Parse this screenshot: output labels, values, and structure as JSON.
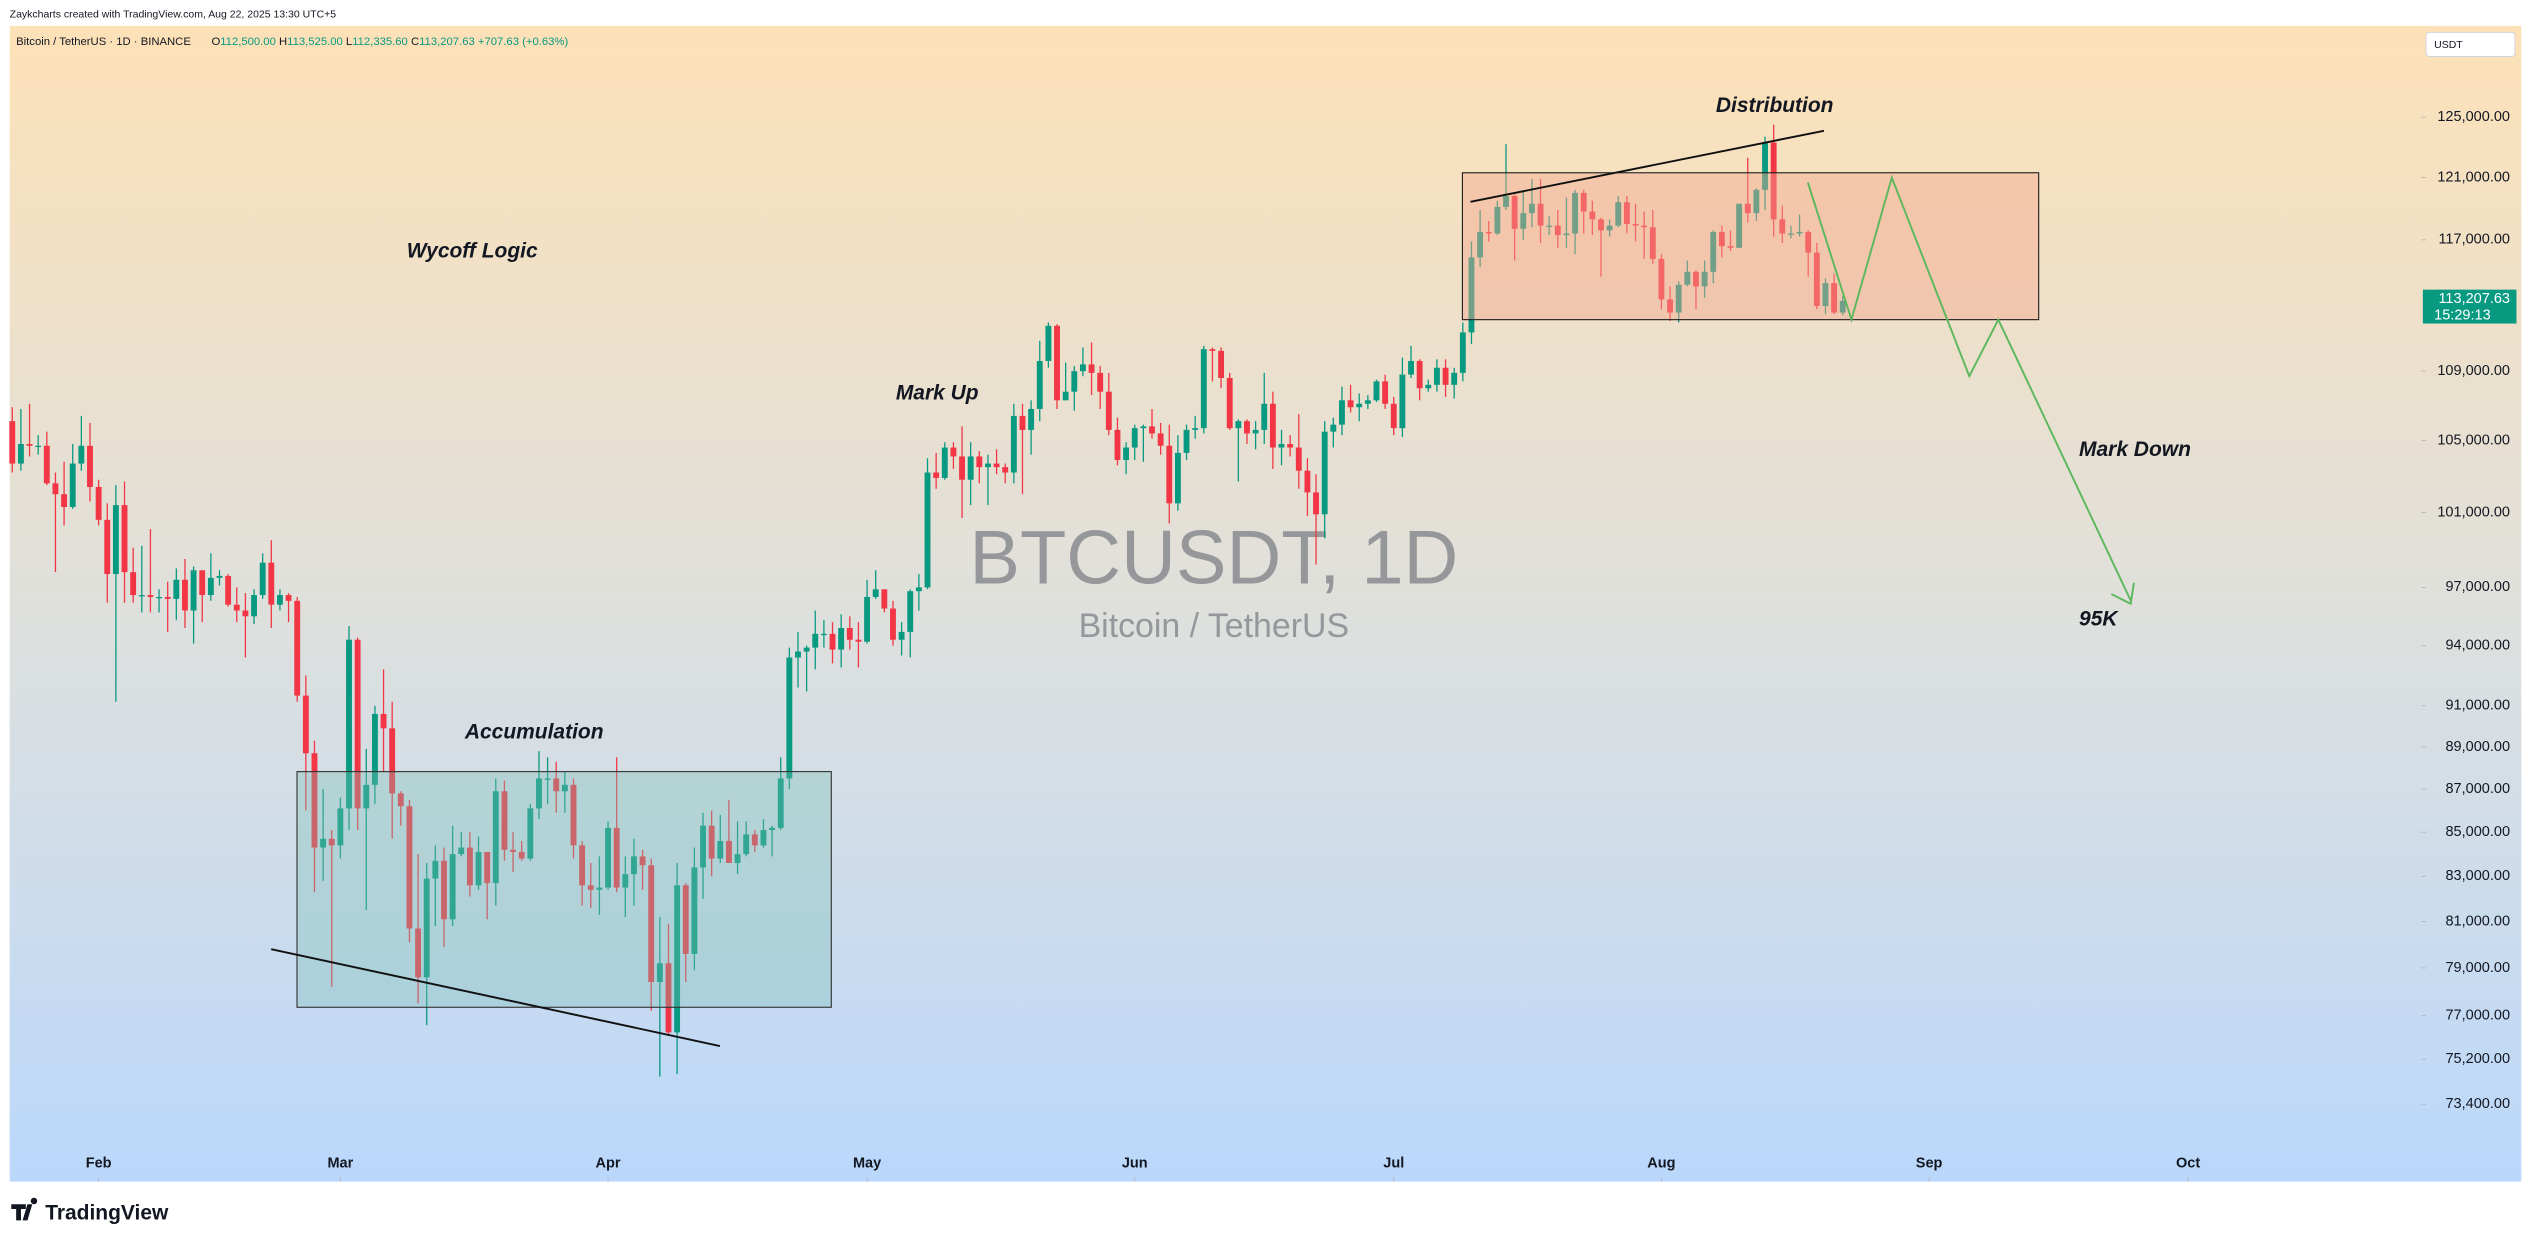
{
  "header": {
    "credit": "Zaykcharts created with TradingView.com, Aug 22, 2025 13:30 UTC+5",
    "currency": "USDT"
  },
  "chart_data": {
    "type": "candlestick",
    "symbol": "Bitcoin / TetherUS · 1D · BINANCE",
    "ohlc_legend": [
      {
        "key": "O",
        "value": "112,500.00"
      },
      {
        "key": "H",
        "value": "113,525.00"
      },
      {
        "key": "L",
        "value": "112,335.60"
      },
      {
        "key": "C",
        "value": "113,207.63"
      }
    ],
    "change": "+707.63 (+0.63%)",
    "watermark": "BTCUSDT, 1D",
    "watermark_subtitle": "Bitcoin / TetherUS",
    "price_tag": {
      "label": "113,207.63",
      "countdown": "15:29:13"
    },
    "up_color": "#089981",
    "down_color": "#f23645",
    "log_scale": true,
    "xlim": [
      -0.3,
      279
    ],
    "ylim": [
      70400,
      131200
    ],
    "xticks": [
      {
        "value": 10,
        "label": "Feb"
      },
      {
        "value": 38,
        "label": "Mar"
      },
      {
        "value": 69,
        "label": "Apr"
      },
      {
        "value": 99,
        "label": "May"
      },
      {
        "value": 130,
        "label": "Jun"
      },
      {
        "value": 160,
        "label": "Jul"
      },
      {
        "value": 191,
        "label": "Aug"
      },
      {
        "value": 222,
        "label": "Sep"
      },
      {
        "value": 252,
        "label": "Oct"
      }
    ],
    "yticks": [
      {
        "value": 125000,
        "label": "125,000.00"
      },
      {
        "value": 121000,
        "label": "121,000.00"
      },
      {
        "value": 117000,
        "label": "117,000.00"
      },
      {
        "value": 109000,
        "label": "109,000.00"
      },
      {
        "value": 105000,
        "label": "105,000.00"
      },
      {
        "value": 101000,
        "label": "101,000.00"
      },
      {
        "value": 97000,
        "label": "97,000.00"
      },
      {
        "value": 94000,
        "label": "94,000.00"
      },
      {
        "value": 91000,
        "label": "91,000.00"
      },
      {
        "value": 89000,
        "label": "89,000.00"
      },
      {
        "value": 87000,
        "label": "87,000.00"
      },
      {
        "value": 85000,
        "label": "85,000.00"
      },
      {
        "value": 83000,
        "label": "83,000.00"
      },
      {
        "value": 81000,
        "label": "81,000.00"
      },
      {
        "value": 79000,
        "label": "79,000.00"
      },
      {
        "value": 77000,
        "label": "77,000.00"
      },
      {
        "value": 75200,
        "label": "75,200.00"
      },
      {
        "value": 73400,
        "label": "73,400.00"
      }
    ],
    "candles": [
      [
        106100,
        106900,
        103200,
        103700
      ],
      [
        103700,
        106800,
        103300,
        104800
      ],
      [
        104800,
        107100,
        104100,
        104700
      ],
      [
        104700,
        105300,
        104200,
        104700
      ],
      [
        104700,
        105500,
        102500,
        102600
      ],
      [
        102600,
        103200,
        97800,
        102000
      ],
      [
        102000,
        103800,
        100300,
        101300
      ],
      [
        101300,
        104800,
        101200,
        103700
      ],
      [
        103700,
        106400,
        103300,
        104700
      ],
      [
        104700,
        106000,
        101600,
        102400
      ],
      [
        102400,
        102800,
        100300,
        100600
      ],
      [
        100600,
        101500,
        96200,
        97700
      ],
      [
        97700,
        102500,
        91200,
        101400
      ],
      [
        101400,
        102700,
        96200,
        97800
      ],
      [
        97800,
        99100,
        96200,
        96600
      ],
      [
        96600,
        99200,
        95700,
        96600
      ],
      [
        96600,
        100100,
        95700,
        96500
      ],
      [
        96500,
        96900,
        95700,
        96500
      ],
      [
        96500,
        97300,
        94700,
        96400
      ],
      [
        96400,
        98000,
        95300,
        97400
      ],
      [
        97400,
        98500,
        94900,
        95800
      ],
      [
        95800,
        98100,
        94100,
        97900
      ],
      [
        97900,
        97900,
        95200,
        96600
      ],
      [
        96600,
        98800,
        96300,
        97500
      ],
      [
        97500,
        97900,
        97100,
        97600
      ],
      [
        97600,
        97700,
        96000,
        96100
      ],
      [
        96100,
        97000,
        95200,
        95800
      ],
      [
        95800,
        96700,
        93400,
        95500
      ],
      [
        95500,
        96900,
        95100,
        96600
      ],
      [
        96600,
        98800,
        96400,
        98300
      ],
      [
        98300,
        99500,
        94900,
        96100
      ],
      [
        96100,
        96900,
        95800,
        96600
      ],
      [
        96600,
        96700,
        95200,
        96300
      ],
      [
        96300,
        96500,
        91200,
        91500
      ],
      [
        91500,
        92500,
        86000,
        88700
      ],
      [
        88700,
        89300,
        82300,
        84300
      ],
      [
        84300,
        87000,
        82800,
        84700
      ],
      [
        84700,
        85100,
        78200,
        84400
      ],
      [
        84400,
        86600,
        83800,
        86100
      ],
      [
        86100,
        95000,
        85100,
        94300
      ],
      [
        94300,
        94400,
        85100,
        86100
      ],
      [
        86100,
        88900,
        81500,
        87200
      ],
      [
        87200,
        91000,
        86300,
        90600
      ],
      [
        90600,
        92800,
        87800,
        89900
      ],
      [
        89900,
        91200,
        84700,
        86800
      ],
      [
        86800,
        86900,
        85300,
        86200
      ],
      [
        86200,
        86500,
        80100,
        80700
      ],
      [
        80700,
        84000,
        77500,
        78600
      ],
      [
        78600,
        83600,
        76600,
        82900
      ],
      [
        82900,
        84400,
        80800,
        83700
      ],
      [
        83700,
        84300,
        79900,
        81100
      ],
      [
        81100,
        85300,
        80800,
        84000
      ],
      [
        84000,
        85000,
        83900,
        84300
      ],
      [
        84300,
        85000,
        82100,
        82600
      ],
      [
        82600,
        84800,
        82400,
        84100
      ],
      [
        84100,
        84100,
        81100,
        82700
      ],
      [
        82700,
        87500,
        81700,
        86900
      ],
      [
        86900,
        87400,
        83700,
        84200
      ],
      [
        84200,
        85000,
        83200,
        84100
      ],
      [
        84100,
        84600,
        83700,
        83800
      ],
      [
        83800,
        86300,
        83700,
        86100
      ],
      [
        86100,
        88800,
        85600,
        87500
      ],
      [
        87500,
        88500,
        86300,
        87500
      ],
      [
        87500,
        88300,
        85900,
        86900
      ],
      [
        86900,
        87800,
        85900,
        87200
      ],
      [
        87200,
        87500,
        83800,
        84400
      ],
      [
        84400,
        84600,
        81700,
        82600
      ],
      [
        82600,
        83600,
        81600,
        82400
      ],
      [
        82400,
        83900,
        81300,
        82500
      ],
      [
        82500,
        85500,
        82400,
        85200
      ],
      [
        85200,
        88500,
        82300,
        82500
      ],
      [
        82500,
        83900,
        81200,
        83100
      ],
      [
        83100,
        84700,
        81700,
        83900
      ],
      [
        83900,
        84200,
        82400,
        83500
      ],
      [
        83500,
        83800,
        77200,
        78400
      ],
      [
        78400,
        81200,
        74500,
        79200
      ],
      [
        79200,
        80900,
        76200,
        76300
      ],
      [
        76300,
        83600,
        74600,
        82600
      ],
      [
        82600,
        82700,
        78400,
        79600
      ],
      [
        79600,
        84300,
        78900,
        83400
      ],
      [
        83400,
        85900,
        82000,
        85300
      ],
      [
        85300,
        86000,
        83000,
        83800
      ],
      [
        83800,
        85800,
        83600,
        84600
      ],
      [
        84600,
        86500,
        83600,
        83600
      ],
      [
        83600,
        85500,
        83100,
        84000
      ],
      [
        84000,
        85500,
        83900,
        84900
      ],
      [
        84900,
        85100,
        84100,
        84400
      ],
      [
        84400,
        85600,
        84300,
        85100
      ],
      [
        85100,
        85300,
        83900,
        85200
      ],
      [
        85200,
        88500,
        85100,
        87500
      ],
      [
        87500,
        93900,
        87000,
        93400
      ],
      [
        93400,
        94700,
        91900,
        93700
      ],
      [
        93700,
        94000,
        91700,
        93900
      ],
      [
        93900,
        95800,
        92800,
        94600
      ],
      [
        94600,
        95300,
        93900,
        94600
      ],
      [
        94600,
        95200,
        93100,
        93800
      ],
      [
        93800,
        95600,
        92900,
        94900
      ],
      [
        94900,
        95500,
        93800,
        94300
      ],
      [
        94300,
        95200,
        92900,
        94200
      ],
      [
        94200,
        97400,
        94100,
        96500
      ],
      [
        96500,
        97900,
        96400,
        96900
      ],
      [
        96900,
        96900,
        95700,
        95900
      ],
      [
        95900,
        96300,
        94000,
        94300
      ],
      [
        94300,
        95200,
        93500,
        94700
      ],
      [
        94700,
        96900,
        93400,
        96800
      ],
      [
        96800,
        97700,
        95800,
        97000
      ],
      [
        97000,
        104000,
        96900,
        103200
      ],
      [
        103200,
        104300,
        102300,
        102900
      ],
      [
        102900,
        104900,
        102800,
        104600
      ],
      [
        104600,
        104900,
        103400,
        104100
      ],
      [
        104100,
        105800,
        100700,
        102800
      ],
      [
        102800,
        104900,
        101400,
        104100
      ],
      [
        104100,
        104400,
        102600,
        103500
      ],
      [
        103500,
        104200,
        101400,
        103700
      ],
      [
        103700,
        104500,
        103100,
        103500
      ],
      [
        103500,
        103700,
        102600,
        103200
      ],
      [
        103200,
        107100,
        102600,
        106400
      ],
      [
        106400,
        107100,
        102000,
        105600
      ],
      [
        105600,
        107300,
        104200,
        106800
      ],
      [
        106800,
        110800,
        106100,
        109600
      ],
      [
        109600,
        111900,
        109200,
        111700
      ],
      [
        111700,
        111800,
        106800,
        107300
      ],
      [
        107300,
        109500,
        107300,
        107800
      ],
      [
        107800,
        109300,
        106700,
        109000
      ],
      [
        109000,
        110400,
        108700,
        109400
      ],
      [
        109400,
        110700,
        107600,
        108900
      ],
      [
        108900,
        109300,
        106800,
        107800
      ],
      [
        107800,
        108900,
        105300,
        105600
      ],
      [
        105600,
        106300,
        103600,
        103900
      ],
      [
        103900,
        104900,
        103100,
        104600
      ],
      [
        104600,
        105900,
        103900,
        105700
      ],
      [
        105700,
        105900,
        103800,
        105800
      ],
      [
        105800,
        106800,
        105100,
        105400
      ],
      [
        105400,
        106000,
        104200,
        104700
      ],
      [
        104700,
        105900,
        100400,
        101500
      ],
      [
        101500,
        105300,
        101100,
        104300
      ],
      [
        104300,
        105900,
        103900,
        105600
      ],
      [
        105600,
        106400,
        105100,
        105700
      ],
      [
        105700,
        110500,
        105400,
        110300
      ],
      [
        110300,
        110400,
        108400,
        110200
      ],
      [
        110200,
        110400,
        108000,
        108600
      ],
      [
        108600,
        108900,
        105600,
        105700
      ],
      [
        105700,
        106200,
        102700,
        106100
      ],
      [
        106100,
        106200,
        104800,
        105400
      ],
      [
        105400,
        106100,
        104500,
        105600
      ],
      [
        105600,
        108900,
        104800,
        107100
      ],
      [
        107100,
        107800,
        103400,
        104600
      ],
      [
        104600,
        105600,
        103600,
        104800
      ],
      [
        104800,
        105300,
        104100,
        104600
      ],
      [
        104600,
        106500,
        102300,
        103300
      ],
      [
        103300,
        104000,
        100800,
        102100
      ],
      [
        102100,
        103100,
        98200,
        100900
      ],
      [
        100900,
        106100,
        99600,
        105500
      ],
      [
        105500,
        106300,
        104600,
        105900
      ],
      [
        105900,
        108100,
        105300,
        107300
      ],
      [
        107300,
        108200,
        106600,
        106900
      ],
      [
        106900,
        107700,
        106100,
        107100
      ],
      [
        107100,
        107600,
        106800,
        107300
      ],
      [
        107300,
        108500,
        107200,
        108400
      ],
      [
        108400,
        108800,
        106800,
        107100
      ],
      [
        107100,
        107500,
        105300,
        105700
      ],
      [
        105700,
        109800,
        105200,
        108800
      ],
      [
        108800,
        110500,
        108600,
        109600
      ],
      [
        109600,
        109700,
        107300,
        108000
      ],
      [
        108000,
        108500,
        107800,
        108200
      ],
      [
        108200,
        109700,
        107800,
        109200
      ],
      [
        109200,
        109700,
        107500,
        108200
      ],
      [
        108200,
        109200,
        107400,
        108900
      ],
      [
        108900,
        111900,
        108400,
        111300
      ],
      [
        111300,
        116900,
        110600,
        115900
      ],
      [
        115900,
        118900,
        115300,
        117500
      ],
      [
        117500,
        118200,
        116900,
        117400
      ],
      [
        117400,
        119500,
        117300,
        119100
      ],
      [
        119100,
        123200,
        118900,
        119800
      ],
      [
        119800,
        119900,
        115700,
        117700
      ],
      [
        117700,
        120100,
        117000,
        118700
      ],
      [
        118700,
        120900,
        117800,
        119300
      ],
      [
        119300,
        120900,
        116800,
        117900
      ],
      [
        117900,
        118500,
        117300,
        117900
      ],
      [
        117900,
        118900,
        116500,
        117300
      ],
      [
        117300,
        119700,
        116500,
        117400
      ],
      [
        117400,
        120200,
        116100,
        120000
      ],
      [
        120000,
        120200,
        117400,
        118800
      ],
      [
        118800,
        119500,
        117300,
        118300
      ],
      [
        118300,
        118400,
        114700,
        117600
      ],
      [
        117600,
        118300,
        117200,
        117900
      ],
      [
        117900,
        119800,
        117800,
        119400
      ],
      [
        119400,
        119800,
        117400,
        118000
      ],
      [
        118000,
        119300,
        116900,
        117900
      ],
      [
        117900,
        118800,
        115800,
        117800
      ],
      [
        117800,
        118900,
        115500,
        115800
      ],
      [
        115800,
        116100,
        112700,
        113300
      ],
      [
        113300,
        114100,
        112000,
        112500
      ],
      [
        112500,
        114400,
        111900,
        114200
      ],
      [
        114200,
        115700,
        114100,
        115000
      ],
      [
        115000,
        115100,
        112700,
        114100
      ],
      [
        114100,
        115700,
        113400,
        115000
      ],
      [
        115000,
        117600,
        114300,
        117500
      ],
      [
        117500,
        117900,
        115900,
        116600
      ],
      [
        116600,
        117600,
        116300,
        116500
      ],
      [
        116500,
        119300,
        116500,
        119300
      ],
      [
        119300,
        122300,
        118100,
        118700
      ],
      [
        118700,
        120300,
        118200,
        120200
      ],
      [
        120200,
        123700,
        118900,
        123300
      ],
      [
        123300,
        124500,
        117200,
        118300
      ],
      [
        118300,
        119200,
        116800,
        117400
      ],
      [
        117400,
        117900,
        117100,
        117400
      ],
      [
        117400,
        118600,
        117200,
        117500
      ],
      [
        117500,
        117600,
        114700,
        116200
      ],
      [
        116200,
        116800,
        112700,
        112900
      ],
      [
        112900,
        114600,
        112400,
        114300
      ],
      [
        114300,
        114900,
        112400,
        112500
      ],
      [
        112500,
        113525,
        112335.6,
        113207.63
      ]
    ]
  },
  "annotations": {
    "wyckoff": "Wycoff Logic",
    "markup": "Mark Up",
    "distribution": "Distribution",
    "accumulation": "Accumulation",
    "markdown": "Mark Down",
    "target": "95K"
  },
  "footer": {
    "brand": "TradingView"
  }
}
